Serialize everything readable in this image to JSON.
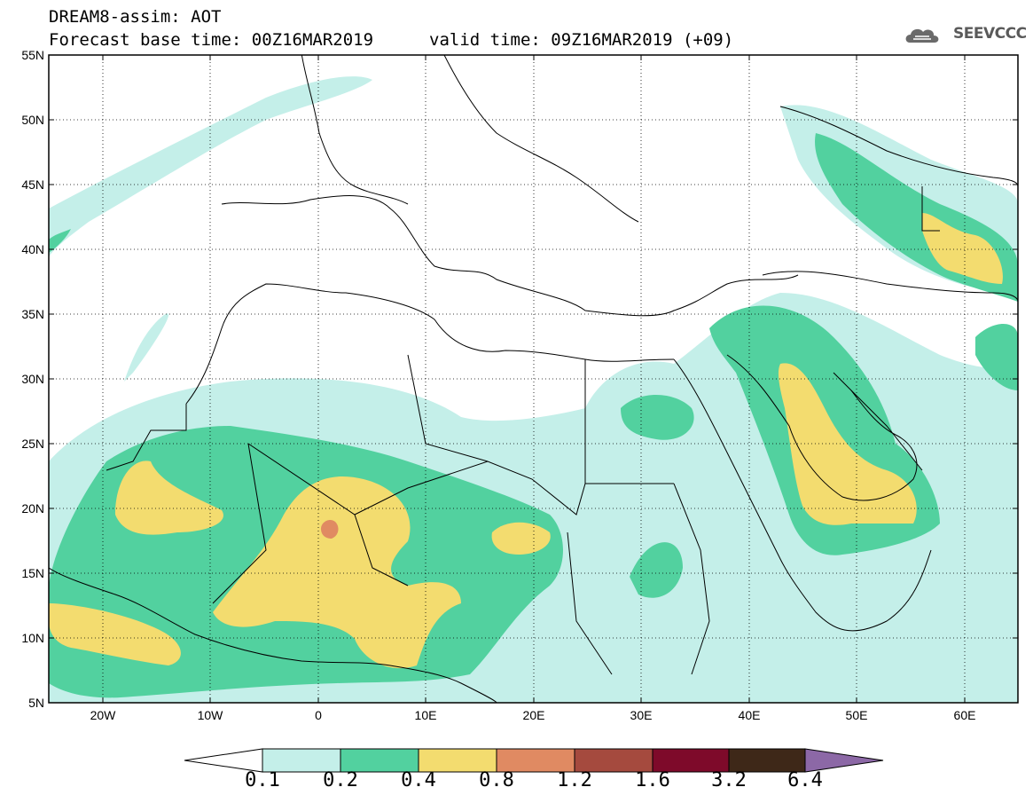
{
  "title": {
    "line1": "DREAM8-assim: AOT",
    "base_time": "Forecast base time: 00Z16MAR2019",
    "valid_time": "valid time: 09Z16MAR2019 (+09)"
  },
  "logo": {
    "text": "SEEVCCC",
    "icon": "cloud-logo-icon"
  },
  "axes": {
    "lat_labels": [
      "55N",
      "50N",
      "45N",
      "40N",
      "35N",
      "30N",
      "25N",
      "20N",
      "15N",
      "10N",
      "5N"
    ],
    "lon_labels": [
      "20W",
      "10W",
      "0",
      "10E",
      "20E",
      "30E",
      "40E",
      "50E",
      "60E"
    ],
    "lat_range": [
      5,
      55
    ],
    "lon_range": [
      -25,
      65
    ]
  },
  "colorbar": {
    "labels": [
      "0.1",
      "0.2",
      "0.4",
      "0.8",
      "1.2",
      "1.6",
      "3.2",
      "6.4"
    ],
    "colors": [
      "#ffffff",
      "#c4efe9",
      "#52d19f",
      "#f3dc6f",
      "#e08a62",
      "#a54a3e",
      "#7e0a2a",
      "#3e2818",
      "#8c68a6"
    ]
  }
}
